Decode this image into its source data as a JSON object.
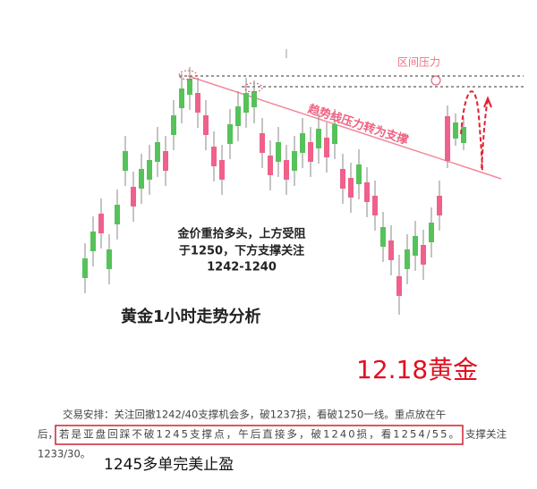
{
  "chart": {
    "zone_label": "区间压力",
    "trend_label": "趋势线压力转为支撑",
    "note": [
      "金价重拾多头，上方受阻",
      "于1250，下方支撑关注",
      "1242-1240"
    ],
    "caption": "黄金1小时走势分析"
  },
  "headline": "12.18黄金",
  "arrangement": {
    "line1": "交易安排：关注回撤1242/40支撑机会多，破1237损，看破1250一线。重点放在午",
    "line2_start": "后，",
    "highlight": "若是亚盘回踩不破1245支撑点，午后直接多，破1240损，看1254/55。",
    "line2_end": "支撑关注",
    "line3": "1233/30。"
  },
  "result": "1245多单完美止盈"
}
